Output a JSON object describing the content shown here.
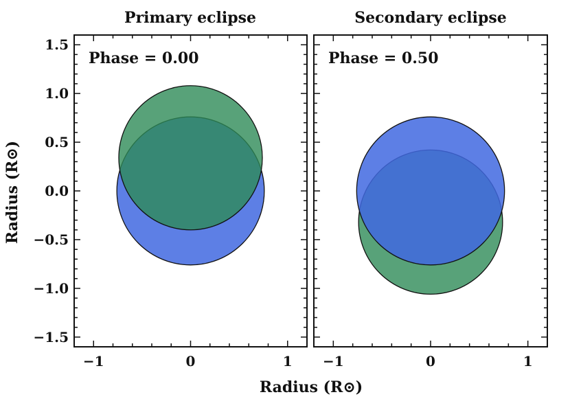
{
  "chart_data": {
    "type": "scatter",
    "xlabel": "Radius (R⊙)",
    "ylabel": "Radius (R⊙)",
    "panels": [
      {
        "title": "Primary eclipse",
        "annotation": "Phase = 0.00",
        "xlim": [
          -1.2,
          1.2
        ],
        "ylim": [
          -1.6,
          1.6
        ],
        "xticks": [
          -1,
          0,
          1
        ],
        "xtick_labels": [
          "−1",
          "0",
          "1"
        ],
        "yticks": [
          1.5,
          1.0,
          0.5,
          0.0,
          -0.5,
          -1.0,
          -1.5
        ],
        "ytick_labels": [
          "1.5",
          "1.0",
          "0.5",
          "0.0",
          "−0.5",
          "−1.0",
          "−1.5"
        ],
        "circles": [
          {
            "name": "back star (blue)",
            "cx": 0.0,
            "cy": 0.0,
            "r": 0.76,
            "color": "#4169e1",
            "alpha": 0.85
          },
          {
            "name": "front star (green)",
            "cx": 0.0,
            "cy": 0.34,
            "r": 0.74,
            "color": "#2e8b57",
            "alpha": 0.8
          }
        ]
      },
      {
        "title": "Secondary eclipse",
        "annotation": "Phase = 0.50",
        "xlim": [
          -1.2,
          1.2
        ],
        "ylim": [
          -1.6,
          1.6
        ],
        "xticks": [
          -1,
          0,
          1
        ],
        "xtick_labels": [
          "−1",
          "0",
          "1"
        ],
        "yticks": [
          1.5,
          1.0,
          0.5,
          0.0,
          -0.5,
          -1.0,
          -1.5
        ],
        "ytick_labels": [],
        "circles": [
          {
            "name": "back star (green)",
            "cx": 0.0,
            "cy": -0.32,
            "r": 0.74,
            "color": "#2e8b57",
            "alpha": 0.8
          },
          {
            "name": "front star (blue)",
            "cx": 0.0,
            "cy": 0.0,
            "r": 0.76,
            "color": "#4169e1",
            "alpha": 0.85
          }
        ]
      }
    ]
  }
}
